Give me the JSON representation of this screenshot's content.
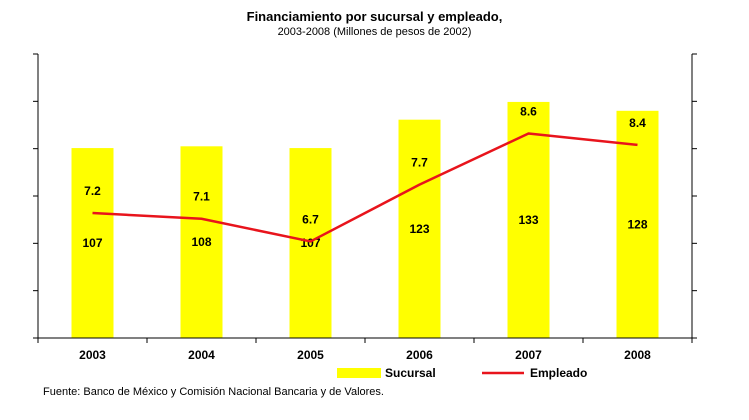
{
  "chart_data": {
    "type": "bar",
    "title": "Financiamiento por sucursal y empleado,",
    "subtitle": "2003-2008  (Millones de pesos de 2002)",
    "categories": [
      "2003",
      "2004",
      "2005",
      "2006",
      "2007",
      "2008"
    ],
    "series": [
      {
        "name": "Sucursal",
        "type": "bar",
        "axis": "left",
        "color": "#FFFF00",
        "values": [
          107,
          108,
          107,
          123,
          133,
          128
        ]
      },
      {
        "name": "Empleado",
        "type": "line",
        "axis": "right",
        "color": "#E8141C",
        "values": [
          7.2,
          7.1,
          6.7,
          7.7,
          8.6,
          8.4
        ]
      }
    ],
    "ylim_left": [
      0,
      160
    ],
    "ylim_right": [
      5,
      10
    ],
    "y_ticks_count": 6,
    "tick_labels_shown": false,
    "grid": false,
    "legend_position": "bottom"
  },
  "source": "Fuente: Banco de México y Comisión Nacional Bancaria y de Valores."
}
